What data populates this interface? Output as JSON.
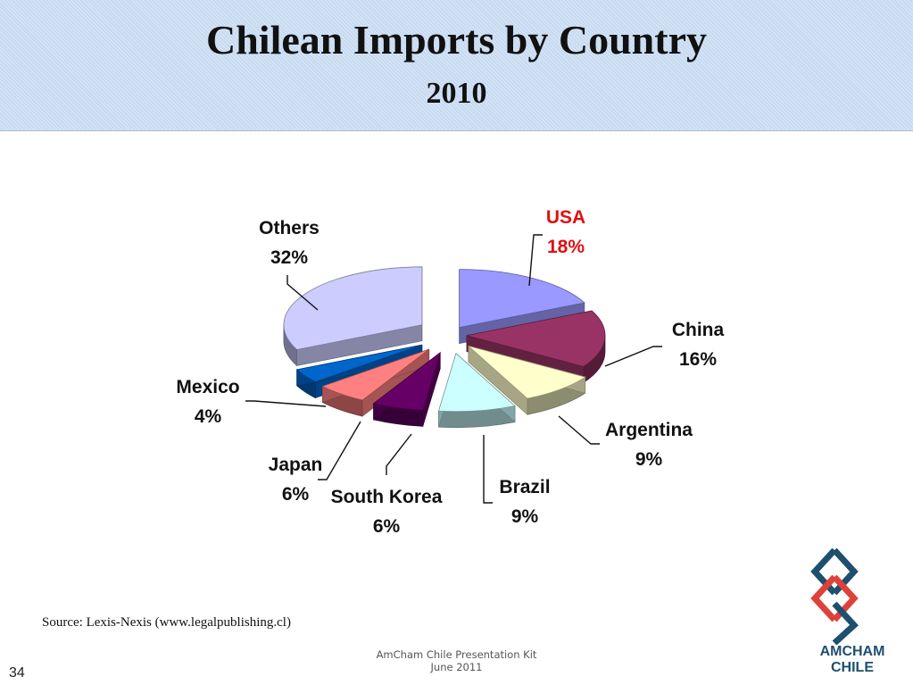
{
  "header": {
    "title": "Chilean Imports by Country",
    "subtitle": "2010"
  },
  "chart_data": {
    "type": "pie",
    "style": "3d-exploded",
    "categories": [
      "USA",
      "China",
      "Argentina",
      "Brazil",
      "South Korea",
      "Japan",
      "Mexico",
      "Others"
    ],
    "values": [
      18,
      16,
      9,
      9,
      6,
      6,
      4,
      32
    ],
    "value_labels": [
      "18%",
      "16%",
      "9%",
      "9%",
      "6%",
      "6%",
      "4%",
      "32%"
    ],
    "colors": [
      "#9999ff",
      "#993366",
      "#ffffcc",
      "#ccffff",
      "#660066",
      "#ff8080",
      "#0066cc",
      "#ccccff"
    ],
    "highlight": {
      "category": "USA",
      "color": "#e01010"
    }
  },
  "source": "Source: Lexis-Nexis (www.legalpublishing.cl)",
  "footer": {
    "line1": "AmCham Chile Presentation Kit",
    "line2": "June 2011"
  },
  "page_number": "34",
  "logo": {
    "line1": "AMCHAM",
    "line2": "CHILE",
    "colors": [
      "#1d4f6e",
      "#e0403a"
    ]
  }
}
